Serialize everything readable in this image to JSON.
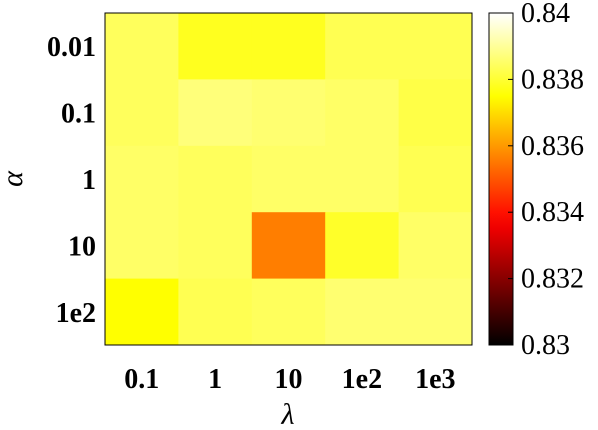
{
  "chart_data": {
    "type": "heatmap",
    "title": "",
    "xlabel": "λ",
    "ylabel": "α",
    "x_categories": [
      "0.1",
      "1",
      "10",
      "1e2",
      "1e3"
    ],
    "y_categories": [
      "0.01",
      "0.1",
      "1",
      "10",
      "1e2"
    ],
    "values": [
      [
        0.8384,
        0.8378,
        0.8378,
        0.8383,
        0.8383
      ],
      [
        0.8384,
        0.8387,
        0.8386,
        0.8385,
        0.8382
      ],
      [
        0.8385,
        0.8384,
        0.8385,
        0.8385,
        0.8383
      ],
      [
        0.8385,
        0.8384,
        0.8356,
        0.8379,
        0.8385
      ],
      [
        0.8375,
        0.8383,
        0.8384,
        0.8386,
        0.8386
      ]
    ],
    "colorbar": {
      "colormap": "hot",
      "range": [
        0.83,
        0.84
      ],
      "ticks": [
        "0.83",
        "0.832",
        "0.834",
        "0.836",
        "0.838",
        "0.84"
      ]
    }
  }
}
